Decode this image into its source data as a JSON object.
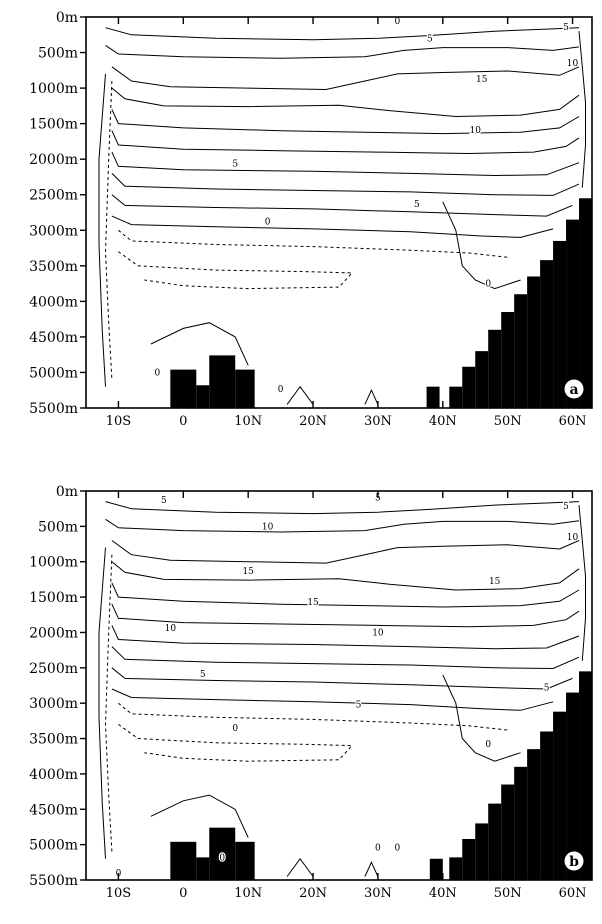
{
  "chart_data": [
    {
      "type": "contour",
      "panel_label": "a",
      "x_ticks": [
        "10S",
        "0",
        "10N",
        "20N",
        "30N",
        "40N",
        "50N",
        "60N"
      ],
      "x_tick_values": [
        -10,
        0,
        10,
        20,
        30,
        40,
        50,
        60
      ],
      "y_ticks": [
        "0m",
        "500m",
        "1000m",
        "1500m",
        "2000m",
        "2500m",
        "3000m",
        "3500m",
        "4000m",
        "4500m",
        "5000m",
        "5500m"
      ],
      "y_tick_values": [
        0,
        500,
        1000,
        1500,
        2000,
        2500,
        3000,
        3500,
        4000,
        4500,
        5000,
        5500
      ],
      "xlim": [
        -15,
        63
      ],
      "ylim": [
        0,
        5500
      ],
      "y_inverted": true,
      "contour_labels": [
        {
          "text": "0",
          "lat": 33,
          "depth": 55
        },
        {
          "text": "5",
          "lat": 38,
          "depth": 300
        },
        {
          "text": "5",
          "lat": 59,
          "depth": 140
        },
        {
          "text": "10",
          "lat": 60,
          "depth": 650
        },
        {
          "text": "15",
          "lat": 46,
          "depth": 870
        },
        {
          "text": "10",
          "lat": 45,
          "depth": 1590
        },
        {
          "text": "5",
          "lat": 8,
          "depth": 2060
        },
        {
          "text": "5",
          "lat": 36,
          "depth": 2630
        },
        {
          "text": "0",
          "lat": 13,
          "depth": 2880
        },
        {
          "text": "0",
          "lat": 47,
          "depth": 3750
        },
        {
          "text": "0",
          "lat": -4,
          "depth": 5000
        },
        {
          "text": "0",
          "lat": 15,
          "depth": 5230
        }
      ],
      "bathymetry": [
        {
          "lat0": -2,
          "lat1": 2,
          "depth": 4960
        },
        {
          "lat0": 2,
          "lat1": 4,
          "depth": 5180
        },
        {
          "lat0": 4,
          "lat1": 8,
          "depth": 4760
        },
        {
          "lat0": 8,
          "lat1": 11,
          "depth": 4960
        },
        {
          "lat0": 37.5,
          "lat1": 39.5,
          "depth": 5200
        },
        {
          "lat0": 41,
          "lat1": 43,
          "depth": 5200
        },
        {
          "lat0": 43,
          "lat1": 45,
          "depth": 4920
        },
        {
          "lat0": 45,
          "lat1": 47,
          "depth": 4700
        },
        {
          "lat0": 47,
          "lat1": 49,
          "depth": 4400
        },
        {
          "lat0": 49,
          "lat1": 51,
          "depth": 4150
        },
        {
          "lat0": 51,
          "lat1": 53,
          "depth": 3900
        },
        {
          "lat0": 53,
          "lat1": 55,
          "depth": 3650
        },
        {
          "lat0": 55,
          "lat1": 57,
          "depth": 3420
        },
        {
          "lat0": 57,
          "lat1": 59,
          "depth": 3150
        },
        {
          "lat0": 59,
          "lat1": 61,
          "depth": 2850
        },
        {
          "lat0": 61,
          "lat1": 63,
          "depth": 2550
        }
      ]
    },
    {
      "type": "contour",
      "panel_label": "b",
      "x_ticks": [
        "10S",
        "0",
        "10N",
        "20N",
        "30N",
        "40N",
        "50N",
        "60N"
      ],
      "x_tick_values": [
        -10,
        0,
        10,
        20,
        30,
        40,
        50,
        60
      ],
      "y_ticks": [
        "0m",
        "500m",
        "1000m",
        "1500m",
        "2000m",
        "2500m",
        "3000m",
        "3500m",
        "4000m",
        "4500m",
        "5000m",
        "5500m"
      ],
      "y_tick_values": [
        0,
        500,
        1000,
        1500,
        2000,
        2500,
        3000,
        3500,
        4000,
        4500,
        5000,
        5500
      ],
      "xlim": [
        -15,
        63
      ],
      "ylim": [
        0,
        5500
      ],
      "y_inverted": true,
      "contour_labels": [
        {
          "text": "5",
          "lat": -3,
          "depth": 130
        },
        {
          "text": "5",
          "lat": 30,
          "depth": 95
        },
        {
          "text": "5",
          "lat": 59,
          "depth": 210
        },
        {
          "text": "10",
          "lat": 13,
          "depth": 500
        },
        {
          "text": "10",
          "lat": 60,
          "depth": 650
        },
        {
          "text": "15",
          "lat": 10,
          "depth": 1130
        },
        {
          "text": "15",
          "lat": 20,
          "depth": 1570
        },
        {
          "text": "15",
          "lat": 48,
          "depth": 1270
        },
        {
          "text": "10",
          "lat": -2,
          "depth": 1940
        },
        {
          "text": "10",
          "lat": 30,
          "depth": 2000
        },
        {
          "text": "5",
          "lat": 3,
          "depth": 2590
        },
        {
          "text": "5",
          "lat": 27,
          "depth": 3020
        },
        {
          "text": "5",
          "lat": 56,
          "depth": 2780
        },
        {
          "text": "0",
          "lat": 8,
          "depth": 3350
        },
        {
          "text": "0",
          "lat": 47,
          "depth": 3580
        },
        {
          "text": "0",
          "lat": 30,
          "depth": 5040
        },
        {
          "text": "0",
          "lat": 33,
          "depth": 5040
        },
        {
          "text": "0",
          "lat": 6,
          "depth": 5180
        },
        {
          "text": "0",
          "lat": -10,
          "depth": 5400
        }
      ],
      "bathymetry": [
        {
          "lat0": -2,
          "lat1": 2,
          "depth": 4960
        },
        {
          "lat0": 2,
          "lat1": 4,
          "depth": 5180
        },
        {
          "lat0": 4,
          "lat1": 8,
          "depth": 4760
        },
        {
          "lat0": 8,
          "lat1": 11,
          "depth": 4960
        },
        {
          "lat0": 38,
          "lat1": 40,
          "depth": 5200
        },
        {
          "lat0": 41,
          "lat1": 43,
          "depth": 5180
        },
        {
          "lat0": 43,
          "lat1": 45,
          "depth": 4920
        },
        {
          "lat0": 45,
          "lat1": 47,
          "depth": 4700
        },
        {
          "lat0": 47,
          "lat1": 49,
          "depth": 4420
        },
        {
          "lat0": 49,
          "lat1": 51,
          "depth": 4150
        },
        {
          "lat0": 51,
          "lat1": 53,
          "depth": 3900
        },
        {
          "lat0": 53,
          "lat1": 55,
          "depth": 3650
        },
        {
          "lat0": 55,
          "lat1": 57,
          "depth": 3400
        },
        {
          "lat0": 57,
          "lat1": 59,
          "depth": 3120
        },
        {
          "lat0": 59,
          "lat1": 61,
          "depth": 2850
        },
        {
          "lat0": 61,
          "lat1": 63,
          "depth": 2550
        }
      ]
    }
  ]
}
